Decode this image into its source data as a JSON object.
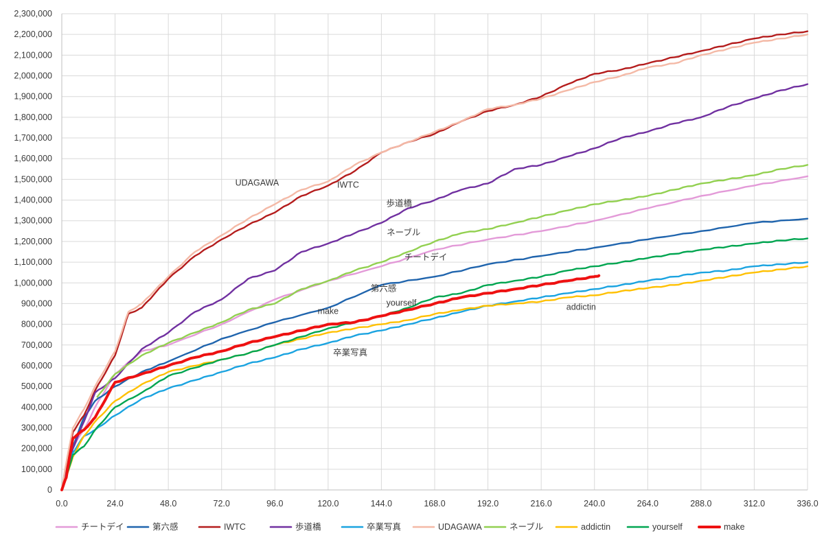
{
  "chart_data": {
    "type": "line",
    "title": "",
    "xlabel": "",
    "ylabel": "",
    "xlim": [
      0,
      336
    ],
    "ylim": [
      0,
      2300000
    ],
    "x_ticks": [
      0,
      24,
      48,
      72,
      96,
      120,
      144,
      168,
      192,
      216,
      240,
      264,
      288,
      312,
      336
    ],
    "x_tick_labels": [
      "0.0",
      "24.0",
      "48.0",
      "72.0",
      "96.0",
      "120.0",
      "144.0",
      "168.0",
      "192.0",
      "216.0",
      "240.0",
      "264.0",
      "288.0",
      "312.0",
      "336.0"
    ],
    "y_ticks": [
      0,
      100000,
      200000,
      300000,
      400000,
      500000,
      600000,
      700000,
      800000,
      900000,
      1000000,
      1100000,
      1200000,
      1300000,
      1400000,
      1500000,
      1600000,
      1700000,
      1800000,
      1900000,
      2000000,
      2100000,
      2200000,
      2300000
    ],
    "y_tick_labels": [
      "0",
      "100,000",
      "200,000",
      "300,000",
      "400,000",
      "500,000",
      "600,000",
      "700,000",
      "800,000",
      "900,000",
      "1,000,000",
      "1,100,000",
      "1,200,000",
      "1,300,000",
      "1,400,000",
      "1,500,000",
      "1,600,000",
      "1,700,000",
      "1,800,000",
      "1,900,000",
      "2,000,000",
      "2,100,000",
      "2,200,000",
      "2,300,000"
    ],
    "grid": true,
    "legend_position": "bottom",
    "series": [
      {
        "name": "チートデイ",
        "color": "#e39ad8",
        "width": "normal",
        "x": [
          0,
          2,
          5,
          10,
          15,
          24,
          36,
          48,
          72,
          96,
          120,
          144,
          168,
          192,
          216,
          240,
          264,
          288,
          312,
          336
        ],
        "y": [
          0,
          90000,
          210000,
          290000,
          400000,
          560000,
          670000,
          700000,
          800000,
          920000,
          1010000,
          1080000,
          1160000,
          1210000,
          1250000,
          1300000,
          1360000,
          1420000,
          1470000,
          1515000
        ]
      },
      {
        "name": "第六感",
        "color": "#1f64ad",
        "width": "normal",
        "x": [
          0,
          2,
          5,
          10,
          15,
          24,
          36,
          48,
          72,
          96,
          120,
          144,
          168,
          192,
          216,
          240,
          264,
          288,
          312,
          336
        ],
        "y": [
          0,
          90000,
          210000,
          350000,
          430000,
          500000,
          570000,
          620000,
          730000,
          810000,
          880000,
          990000,
          1030000,
          1090000,
          1130000,
          1170000,
          1210000,
          1250000,
          1290000,
          1310000
        ]
      },
      {
        "name": "IWTC",
        "color": "#b41c1c",
        "width": "normal",
        "x": [
          0,
          2,
          5,
          10,
          15,
          24,
          30,
          36,
          48,
          60,
          72,
          84,
          96,
          108,
          120,
          132,
          144,
          156,
          168,
          180,
          192,
          204,
          216,
          228,
          240,
          252,
          264,
          276,
          288,
          300,
          312,
          324,
          336
        ],
        "y": [
          0,
          120000,
          280000,
          360000,
          480000,
          650000,
          850000,
          880000,
          1020000,
          1130000,
          1210000,
          1280000,
          1340000,
          1420000,
          1470000,
          1540000,
          1630000,
          1680000,
          1720000,
          1780000,
          1830000,
          1860000,
          1900000,
          1960000,
          2010000,
          2030000,
          2060000,
          2090000,
          2120000,
          2150000,
          2180000,
          2200000,
          2215000
        ]
      },
      {
        "name": "歩道橋",
        "color": "#7030a0",
        "width": "normal",
        "x": [
          0,
          2,
          5,
          10,
          15,
          24,
          36,
          48,
          60,
          72,
          84,
          96,
          108,
          120,
          132,
          144,
          156,
          168,
          180,
          192,
          204,
          216,
          228,
          240,
          252,
          264,
          276,
          288,
          300,
          312,
          324,
          336
        ],
        "y": [
          0,
          80000,
          200000,
          330000,
          470000,
          540000,
          680000,
          760000,
          860000,
          920000,
          1020000,
          1060000,
          1150000,
          1190000,
          1240000,
          1290000,
          1360000,
          1400000,
          1450000,
          1480000,
          1550000,
          1570000,
          1610000,
          1650000,
          1700000,
          1730000,
          1770000,
          1800000,
          1850000,
          1890000,
          1930000,
          1960000
        ]
      },
      {
        "name": "卒業写真",
        "color": "#1aa3e0",
        "width": "normal",
        "x": [
          0,
          2,
          5,
          10,
          15,
          24,
          36,
          48,
          60,
          72,
          84,
          96,
          108,
          120,
          132,
          144,
          156,
          168,
          180,
          192,
          204,
          216,
          228,
          240,
          252,
          264,
          276,
          288,
          300,
          312,
          324,
          336
        ],
        "y": [
          0,
          70000,
          180000,
          260000,
          290000,
          360000,
          440000,
          490000,
          530000,
          570000,
          610000,
          640000,
          680000,
          710000,
          745000,
          770000,
          800000,
          830000,
          860000,
          890000,
          910000,
          930000,
          950000,
          970000,
          990000,
          1010000,
          1030000,
          1050000,
          1060000,
          1080000,
          1090000,
          1100000
        ]
      },
      {
        "name": "UDAGAWA",
        "color": "#f4b9a6",
        "width": "normal",
        "x": [
          0,
          2,
          5,
          10,
          15,
          24,
          30,
          36,
          48,
          60,
          72,
          84,
          96,
          108,
          120,
          132,
          144,
          156,
          168,
          180,
          192,
          204,
          216,
          228,
          240,
          252,
          264,
          276,
          288,
          300,
          312,
          324,
          336
        ],
        "y": [
          0,
          130000,
          300000,
          390000,
          500000,
          670000,
          860000,
          900000,
          1030000,
          1150000,
          1230000,
          1310000,
          1380000,
          1450000,
          1490000,
          1570000,
          1630000,
          1680000,
          1730000,
          1780000,
          1840000,
          1860000,
          1890000,
          1930000,
          1970000,
          2000000,
          2040000,
          2060000,
          2100000,
          2130000,
          2160000,
          2180000,
          2200000
        ]
      },
      {
        "name": "ネーブル",
        "color": "#92d050",
        "width": "normal",
        "x": [
          16,
          24,
          36,
          48,
          60,
          72,
          84,
          96,
          108,
          120,
          132,
          144,
          156,
          168,
          180,
          192,
          204,
          216,
          228,
          240,
          252,
          264,
          276,
          288,
          300,
          312,
          324,
          336
        ],
        "y": [
          450000,
          560000,
          650000,
          710000,
          760000,
          810000,
          870000,
          900000,
          970000,
          1010000,
          1060000,
          1100000,
          1150000,
          1200000,
          1240000,
          1260000,
          1290000,
          1320000,
          1350000,
          1380000,
          1400000,
          1420000,
          1450000,
          1480000,
          1500000,
          1520000,
          1550000,
          1570000
        ]
      },
      {
        "name": "addictin",
        "color": "#ffc000",
        "width": "normal",
        "x": [
          0,
          2,
          5,
          10,
          15,
          24,
          36,
          48,
          60,
          72,
          84,
          96,
          108,
          120,
          132,
          144,
          156,
          168,
          180,
          192,
          204,
          216,
          228,
          240,
          252,
          264,
          276,
          288,
          300,
          312,
          324,
          336
        ],
        "y": [
          0,
          60000,
          160000,
          260000,
          330000,
          430000,
          510000,
          570000,
          600000,
          630000,
          660000,
          700000,
          730000,
          760000,
          780000,
          800000,
          820000,
          850000,
          870000,
          890000,
          900000,
          910000,
          930000,
          940000,
          960000,
          975000,
          990000,
          1010000,
          1030000,
          1050000,
          1065000,
          1080000
        ]
      },
      {
        "name": "yourself",
        "color": "#00a550",
        "width": "normal",
        "x": [
          0,
          2,
          5,
          10,
          15,
          24,
          36,
          48,
          60,
          72,
          84,
          96,
          108,
          120,
          132,
          144,
          156,
          168,
          180,
          192,
          204,
          216,
          228,
          240,
          252,
          264,
          276,
          288,
          300,
          312,
          324,
          336
        ],
        "y": [
          0,
          60000,
          170000,
          210000,
          290000,
          400000,
          470000,
          550000,
          590000,
          630000,
          660000,
          700000,
          740000,
          780000,
          810000,
          840000,
          880000,
          930000,
          950000,
          990000,
          1010000,
          1030000,
          1060000,
          1080000,
          1100000,
          1120000,
          1140000,
          1160000,
          1175000,
          1190000,
          1205000,
          1215000
        ]
      },
      {
        "name": "make",
        "color": "#ee1111",
        "width": "bold",
        "x": [
          0,
          2,
          5,
          10,
          15,
          24,
          36,
          48,
          60,
          72,
          84,
          96,
          108,
          120,
          132,
          144,
          156,
          168,
          180,
          192,
          204,
          216,
          228,
          240,
          242
        ],
        "y": [
          0,
          60000,
          250000,
          290000,
          350000,
          520000,
          560000,
          600000,
          640000,
          670000,
          710000,
          740000,
          770000,
          800000,
          810000,
          840000,
          870000,
          900000,
          930000,
          950000,
          970000,
          990000,
          1010000,
          1030000,
          1035000
        ]
      }
    ],
    "annotations": [
      {
        "text": "UDAGAWA",
        "x": 88,
        "y": 1470000
      },
      {
        "text": "IWTC",
        "x": 129,
        "y": 1460000
      },
      {
        "text": "歩道橋",
        "x": 152,
        "y": 1370000
      },
      {
        "text": "ネーブル",
        "x": 154,
        "y": 1230000
      },
      {
        "text": "チートデイ",
        "x": 164,
        "y": 1110000
      },
      {
        "text": "第六感",
        "x": 145,
        "y": 960000
      },
      {
        "text": "yourself",
        "x": 153,
        "y": 890000
      },
      {
        "text": "make",
        "x": 120,
        "y": 850000
      },
      {
        "text": "addictin",
        "x": 234,
        "y": 870000
      },
      {
        "text": "卒業写真",
        "x": 130,
        "y": 650000
      }
    ]
  }
}
